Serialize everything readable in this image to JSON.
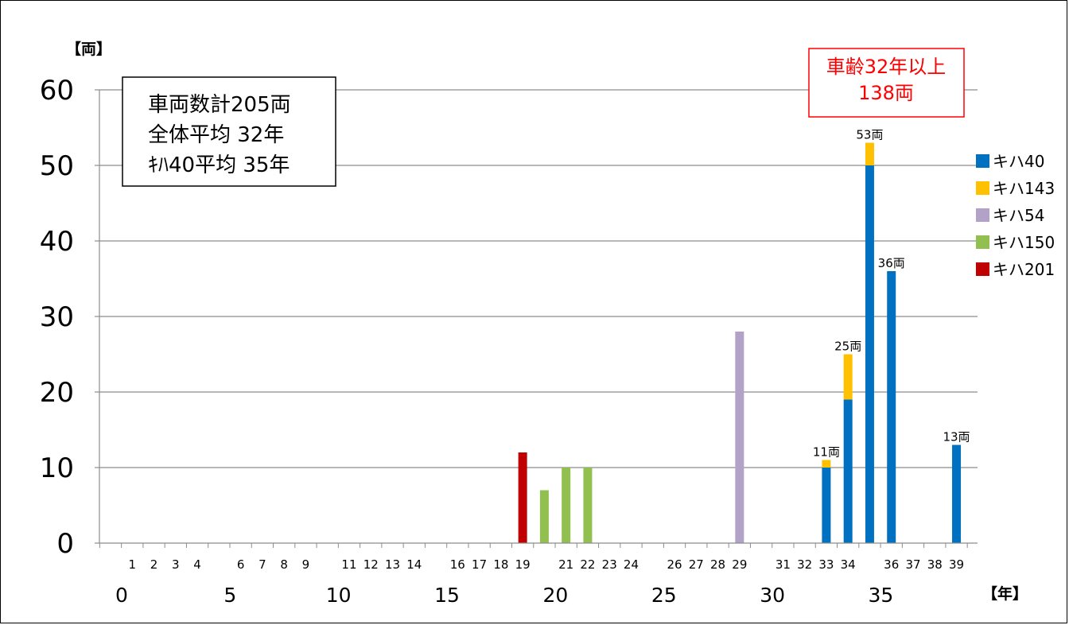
{
  "chart_data": {
    "type": "bar",
    "stacked": true,
    "y_unit": "【両】",
    "x_unit": "【年】",
    "ylim": [
      0,
      60
    ],
    "yticks": [
      "0",
      "10",
      "20",
      "30",
      "40",
      "50",
      "60"
    ],
    "xlim": [
      0,
      40
    ],
    "x_small_labels": [
      "1",
      "2",
      "3",
      "4",
      "6",
      "7",
      "8",
      "9",
      "11",
      "12",
      "13",
      "14",
      "16",
      "17",
      "18",
      "19",
      "21",
      "22",
      "23",
      "24",
      "26",
      "27",
      "28",
      "29",
      "31",
      "32",
      "33",
      "34",
      "36",
      "37",
      "38",
      "39"
    ],
    "x_big_labels": [
      "0",
      "5",
      "10",
      "15",
      "20",
      "25",
      "30",
      "35"
    ],
    "grid": true,
    "legend_position": "right",
    "series": [
      {
        "name": "キハ40",
        "color": "#0070c0",
        "points": [
          [
            33,
            10
          ],
          [
            34,
            19
          ],
          [
            35,
            50
          ],
          [
            36,
            36
          ],
          [
            39,
            13
          ]
        ]
      },
      {
        "name": "キハ143",
        "color": "#ffc000",
        "points": [
          [
            33,
            1
          ],
          [
            34,
            6
          ],
          [
            35,
            3
          ]
        ]
      },
      {
        "name": "キハ54",
        "color": "#b3a2c7",
        "points": [
          [
            29,
            28
          ]
        ]
      },
      {
        "name": "キハ150",
        "color": "#92c050",
        "points": [
          [
            20,
            7
          ],
          [
            21,
            10
          ],
          [
            22,
            10
          ]
        ]
      },
      {
        "name": "キハ201",
        "color": "#c00000",
        "points": [
          [
            19,
            12
          ]
        ]
      }
    ],
    "data_labels": [
      {
        "x": 33,
        "value": 11,
        "text": "11両"
      },
      {
        "x": 34,
        "value": 25,
        "text": "25両"
      },
      {
        "x": 35,
        "value": 53,
        "text": "53両"
      },
      {
        "x": 36,
        "value": 36,
        "text": "36両"
      },
      {
        "x": 39,
        "value": 13,
        "text": "13両"
      }
    ]
  },
  "info_box": {
    "line1": "車両数計205両",
    "line2": "全体平均 32年",
    "line3": "ｷﾊ40平均 35年"
  },
  "callout": {
    "line1": "車齢32年以上",
    "line2": "138両",
    "color": "#ff0000"
  }
}
